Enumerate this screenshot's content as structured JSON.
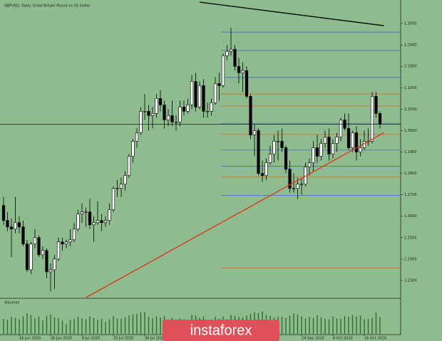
{
  "chart_data": {
    "type": "candlestick",
    "title": "GBPUSD, Daily: Great Britain Pound vs US Dollar",
    "volume_title": "Volumes",
    "watermark": "instaforex",
    "up_color": "#ffffff",
    "down_color": "#000000",
    "background": "#8fbc8f",
    "volume_color": "#2e6b2e",
    "categories": [
      null,
      null,
      null,
      null,
      "16 Jun 2020",
      null,
      null,
      null,
      null,
      null,
      null,
      null,
      "26 Jun 2020",
      null,
      null,
      null,
      null,
      null,
      null,
      null,
      "8 Jul 2020",
      null,
      null,
      null,
      null,
      null,
      null,
      null,
      "20 Jul 2020",
      null,
      null,
      null,
      null,
      null,
      null,
      null,
      "30 Jul 2020",
      null,
      null,
      null,
      null,
      null,
      null,
      null,
      null,
      null,
      null,
      null,
      null,
      null,
      null,
      null,
      null,
      null,
      null,
      null,
      null,
      null,
      null,
      null,
      null,
      null,
      null,
      null,
      null,
      null,
      null,
      null,
      null,
      null,
      null,
      null,
      null,
      null,
      null,
      null,
      "24 Sep 2020",
      null,
      null,
      null,
      null,
      null,
      null,
      null,
      "6 Oct 2020",
      null,
      null,
      null,
      null,
      null,
      null,
      null,
      "16 Oct 2020",
      null,
      null,
      null,
      null
    ],
    "ohlc": [
      [
        1.265,
        1.269,
        1.256,
        1.258
      ],
      [
        1.258,
        1.262,
        1.253,
        1.255
      ],
      [
        1.255,
        1.259,
        1.241,
        1.254
      ],
      [
        1.254,
        1.269,
        1.252,
        1.257
      ],
      [
        1.257,
        1.26,
        1.252,
        1.255
      ],
      [
        1.255,
        1.258,
        1.246,
        1.247
      ],
      [
        1.247,
        1.249,
        1.234,
        1.235
      ],
      [
        1.235,
        1.248,
        1.233,
        1.247
      ],
      [
        1.247,
        1.254,
        1.245,
        1.25
      ],
      [
        1.25,
        1.251,
        1.241,
        1.242
      ],
      [
        1.242,
        1.246,
        1.24,
        1.244
      ],
      [
        1.244,
        1.245,
        1.231,
        1.234
      ],
      [
        1.234,
        1.238,
        1.225,
        1.235
      ],
      [
        1.235,
        1.242,
        1.226,
        1.24
      ],
      [
        1.24,
        1.25,
        1.239,
        1.248
      ],
      [
        1.248,
        1.25,
        1.244,
        1.247
      ],
      [
        1.247,
        1.249,
        1.245,
        1.248
      ],
      [
        1.248,
        1.254,
        1.246,
        1.249
      ],
      [
        1.249,
        1.257,
        1.248,
        1.254
      ],
      [
        1.254,
        1.263,
        1.253,
        1.261
      ],
      [
        1.261,
        1.266,
        1.257,
        1.262
      ],
      [
        1.262,
        1.264,
        1.255,
        1.262
      ],
      [
        1.262,
        1.268,
        1.254,
        1.256
      ],
      [
        1.256,
        1.26,
        1.248,
        1.257
      ],
      [
        1.257,
        1.267,
        1.256,
        1.258
      ],
      [
        1.258,
        1.261,
        1.253,
        1.257
      ],
      [
        1.257,
        1.26,
        1.255,
        1.258
      ],
      [
        1.258,
        1.266,
        1.256,
        1.263
      ],
      [
        1.263,
        1.274,
        1.262,
        1.273
      ],
      [
        1.273,
        1.277,
        1.269,
        1.273
      ],
      [
        1.273,
        1.278,
        1.269,
        1.275
      ],
      [
        1.275,
        1.281,
        1.272,
        1.279
      ],
      [
        1.279,
        1.289,
        1.278,
        1.288
      ],
      [
        1.288,
        1.296,
        1.285,
        1.295
      ],
      [
        1.295,
        1.301,
        1.292,
        1.299
      ],
      [
        1.299,
        1.311,
        1.298,
        1.309
      ],
      [
        1.309,
        1.317,
        1.305,
        1.309
      ],
      [
        1.309,
        1.312,
        1.3,
        1.307
      ],
      [
        1.307,
        1.311,
        1.301,
        1.308
      ],
      [
        1.308,
        1.317,
        1.306,
        1.315
      ],
      [
        1.315,
        1.319,
        1.309,
        1.312
      ],
      [
        1.312,
        1.314,
        1.301,
        1.305
      ],
      [
        1.305,
        1.31,
        1.302,
        1.307
      ],
      [
        1.307,
        1.314,
        1.302,
        1.304
      ],
      [
        1.304,
        1.307,
        1.3,
        1.304
      ],
      [
        1.304,
        1.314,
        1.302,
        1.311
      ],
      [
        1.311,
        1.314,
        1.307,
        1.309
      ],
      [
        1.309,
        1.315,
        1.308,
        1.312
      ],
      [
        1.312,
        1.326,
        1.31,
        1.323
      ],
      [
        1.323,
        1.327,
        1.309,
        1.311
      ],
      [
        1.311,
        1.323,
        1.31,
        1.321
      ],
      [
        1.321,
        1.324,
        1.306,
        1.309
      ],
      [
        1.309,
        1.313,
        1.306,
        1.309
      ],
      [
        1.309,
        1.315,
        1.307,
        1.313
      ],
      [
        1.313,
        1.325,
        1.312,
        1.322
      ],
      [
        1.322,
        1.327,
        1.314,
        1.321
      ],
      [
        1.321,
        1.336,
        1.32,
        1.335
      ],
      [
        1.335,
        1.34,
        1.333,
        1.337
      ],
      [
        1.337,
        1.348,
        1.335,
        1.338
      ],
      [
        1.338,
        1.34,
        1.328,
        1.33
      ],
      [
        1.33,
        1.334,
        1.322,
        1.327
      ],
      [
        1.327,
        1.332,
        1.318,
        1.328
      ],
      [
        1.328,
        1.33,
        1.315,
        1.316
      ],
      [
        1.316,
        1.317,
        1.296,
        1.298
      ],
      [
        1.298,
        1.303,
        1.288,
        1.3
      ],
      [
        1.3,
        1.301,
        1.279,
        1.28
      ],
      [
        1.28,
        1.286,
        1.276,
        1.279
      ],
      [
        1.279,
        1.287,
        1.277,
        1.285
      ],
      [
        1.285,
        1.293,
        1.284,
        1.289
      ],
      [
        1.289,
        1.298,
        1.285,
        1.295
      ],
      [
        1.295,
        1.3,
        1.286,
        1.295
      ],
      [
        1.295,
        1.301,
        1.29,
        1.292
      ],
      [
        1.292,
        1.293,
        1.28,
        1.282
      ],
      [
        1.282,
        1.286,
        1.271,
        1.273
      ],
      [
        1.273,
        1.28,
        1.271,
        1.273
      ],
      [
        1.273,
        1.278,
        1.268,
        1.275
      ],
      [
        1.275,
        1.278,
        1.27,
        1.275
      ],
      [
        1.275,
        1.285,
        1.274,
        1.283
      ],
      [
        1.283,
        1.287,
        1.279,
        1.285
      ],
      [
        1.285,
        1.295,
        1.281,
        1.292
      ],
      [
        1.292,
        1.298,
        1.285,
        1.288
      ],
      [
        1.288,
        1.296,
        1.286,
        1.294
      ],
      [
        1.294,
        1.3,
        1.292,
        1.297
      ],
      [
        1.297,
        1.301,
        1.286,
        1.289
      ],
      [
        1.289,
        1.296,
        1.287,
        1.294
      ],
      [
        1.294,
        1.299,
        1.29,
        1.297
      ],
      [
        1.297,
        1.306,
        1.295,
        1.305
      ],
      [
        1.305,
        1.308,
        1.3,
        1.301
      ],
      [
        1.301,
        1.308,
        1.291,
        1.292
      ],
      [
        1.292,
        1.3,
        1.29,
        1.299
      ],
      [
        1.299,
        1.302,
        1.286,
        1.29
      ],
      [
        1.29,
        1.296,
        1.288,
        1.292
      ],
      [
        1.292,
        1.3,
        1.291,
        1.295
      ],
      [
        1.295,
        1.301,
        1.293,
        1.295
      ],
      [
        1.295,
        1.318,
        1.294,
        1.316
      ],
      [
        1.316,
        1.318,
        1.306,
        1.308
      ],
      [
        1.308,
        1.309,
        1.301,
        1.303
      ]
    ],
    "volumes": [
      62,
      58,
      70,
      66,
      60,
      72,
      85,
      78,
      64,
      70,
      55,
      74,
      80,
      68,
      66,
      54,
      40,
      58,
      62,
      70,
      64,
      60,
      72,
      66,
      58,
      62,
      50,
      60,
      74,
      64,
      62,
      68,
      76,
      80,
      82,
      88,
      90,
      70,
      64,
      72,
      68,
      74,
      60,
      66,
      58,
      64,
      60,
      56,
      78,
      76,
      66,
      72,
      52,
      58,
      70,
      64,
      72,
      60,
      78,
      74,
      70,
      68,
      76,
      82,
      90,
      86,
      92,
      78,
      74,
      68,
      72,
      70,
      66,
      74,
      84,
      80,
      72,
      64,
      70,
      66,
      76,
      68,
      62,
      60,
      72,
      64,
      62,
      74,
      70,
      78,
      72,
      76,
      60,
      62,
      66,
      88,
      70
    ],
    "volume_ylim": [
      0,
      120
    ],
    "ylim": [
      1.222,
      1.36
    ],
    "yticks": [
      {
        "value": 1.23,
        "label": "1.2300"
      },
      {
        "value": 1.24,
        "label": "1.2400"
      },
      {
        "value": 1.25,
        "label": "1.2500"
      },
      {
        "value": 1.26,
        "label": "1.2600"
      },
      {
        "value": 1.27,
        "label": "1.2700"
      },
      {
        "value": 1.28,
        "label": "1.2800"
      },
      {
        "value": 1.29,
        "label": "1.2900"
      },
      {
        "value": 1.3,
        "label": "1.3000"
      },
      {
        "value": 1.31,
        "label": "1.3100"
      },
      {
        "value": 1.32,
        "label": "1.3200"
      },
      {
        "value": 1.33,
        "label": "1.3300"
      },
      {
        "value": 1.34,
        "label": "1.3400"
      },
      {
        "value": 1.35,
        "label": "1.3500"
      }
    ],
    "levels": [
      {
        "value": 1.346,
        "color": "#3a5fcd"
      },
      {
        "value": 1.3374,
        "color": "#3a5fcd"
      },
      {
        "value": 1.3248,
        "color": "#3a5fcd"
      },
      {
        "value": 1.3171,
        "color": "#d2691e"
      },
      {
        "value": 1.3115,
        "color": "#d2691e"
      },
      {
        "value": 1.3032,
        "color": "#3a5fcd"
      },
      {
        "value": 1.2982,
        "color": "#d2691e"
      },
      {
        "value": 1.2909,
        "color": "#3a5fcd"
      },
      {
        "value": 1.2833,
        "color": "#3a5fcd"
      },
      {
        "value": 1.2783,
        "color": "#d2691e"
      },
      {
        "value": 1.2697,
        "color": "#3a5fcd"
      },
      {
        "value": 1.2358,
        "color": "#d2691e"
      }
    ],
    "trendlines": [
      {
        "color": "#e0301e",
        "x": [
          21,
          97
        ],
        "y": [
          1.222,
          1.299
        ]
      },
      {
        "color": "#000000",
        "x": [
          50,
          97
        ],
        "y": [
          1.36,
          1.349
        ]
      }
    ]
  }
}
